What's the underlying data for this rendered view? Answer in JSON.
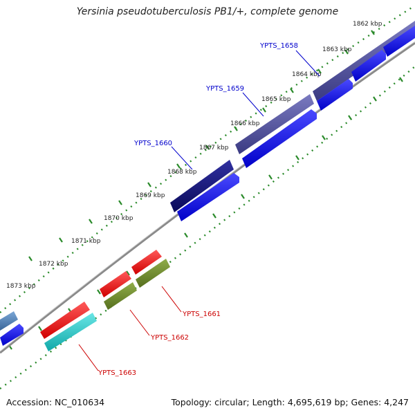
{
  "title": "Yersinia pseudotuberculosis PB1/+, complete genome",
  "accession": "Accession: NC_010634",
  "summary": "Topology: circular; Length: 4,695,619 bp; Genes: 4,247",
  "ticks": [
    "1862 kbp",
    "1863 kbp",
    "1864 kbp",
    "1865 kbp",
    "1866 kbp",
    "1867 kbp",
    "1868 kbp",
    "1869 kbp",
    "1870 kbp",
    "1871 kbp",
    "1872 kbp",
    "1873 kbp"
  ],
  "genes": [
    {
      "label": "YPTS_1658",
      "color": "#0000cc"
    },
    {
      "label": "YPTS_1659",
      "color": "#0000cc"
    },
    {
      "label": "YPTS_1660",
      "color": "#0000cc"
    },
    {
      "label": "YPTS_1661",
      "color": "#cc0000"
    },
    {
      "label": "YPTS_1662",
      "color": "#cc0000"
    },
    {
      "label": "YPTS_1663",
      "color": "#cc0000"
    }
  ],
  "colors": {
    "backbone": "#8a8a8a",
    "dots": "#2a8a2a",
    "gene_navy": "#505098",
    "gene_darknavy": "#141478",
    "cds_blue": "#1a1ae6",
    "gene_red": "#ee1111",
    "cds_olive": "#6b8a2a",
    "cds_cyan": "#22c8c8",
    "gene_steel": "#4a7cb0"
  }
}
